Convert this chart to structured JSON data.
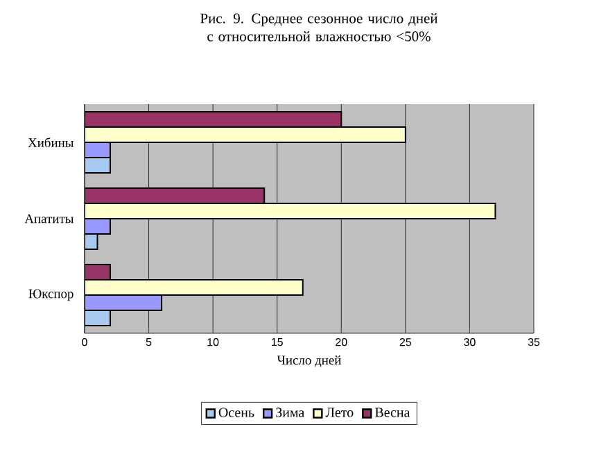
{
  "chart_data": {
    "type": "bar",
    "orientation": "horizontal",
    "title": "Рис. 9. Среднее сезонное число дней с относительной влажностью <50%",
    "xlabel": "Число дней",
    "categories": [
      "Хибины",
      "Апатиты",
      "Юкспор"
    ],
    "series": [
      {
        "name": "Осень",
        "color": "#a6caf0",
        "values": [
          2,
          1,
          2
        ]
      },
      {
        "name": "Зима",
        "color": "#9999ff",
        "values": [
          2,
          2,
          6
        ]
      },
      {
        "name": "Лето",
        "color": "#ffffcc",
        "values": [
          25,
          32,
          17
        ]
      },
      {
        "name": "Весна",
        "color": "#993366",
        "values": [
          20,
          14,
          2
        ]
      }
    ],
    "xlim": [
      0,
      35
    ],
    "xticks": [
      0,
      5,
      10,
      15,
      20,
      25,
      30,
      35
    ],
    "grid": "x",
    "legend": "bottom"
  }
}
